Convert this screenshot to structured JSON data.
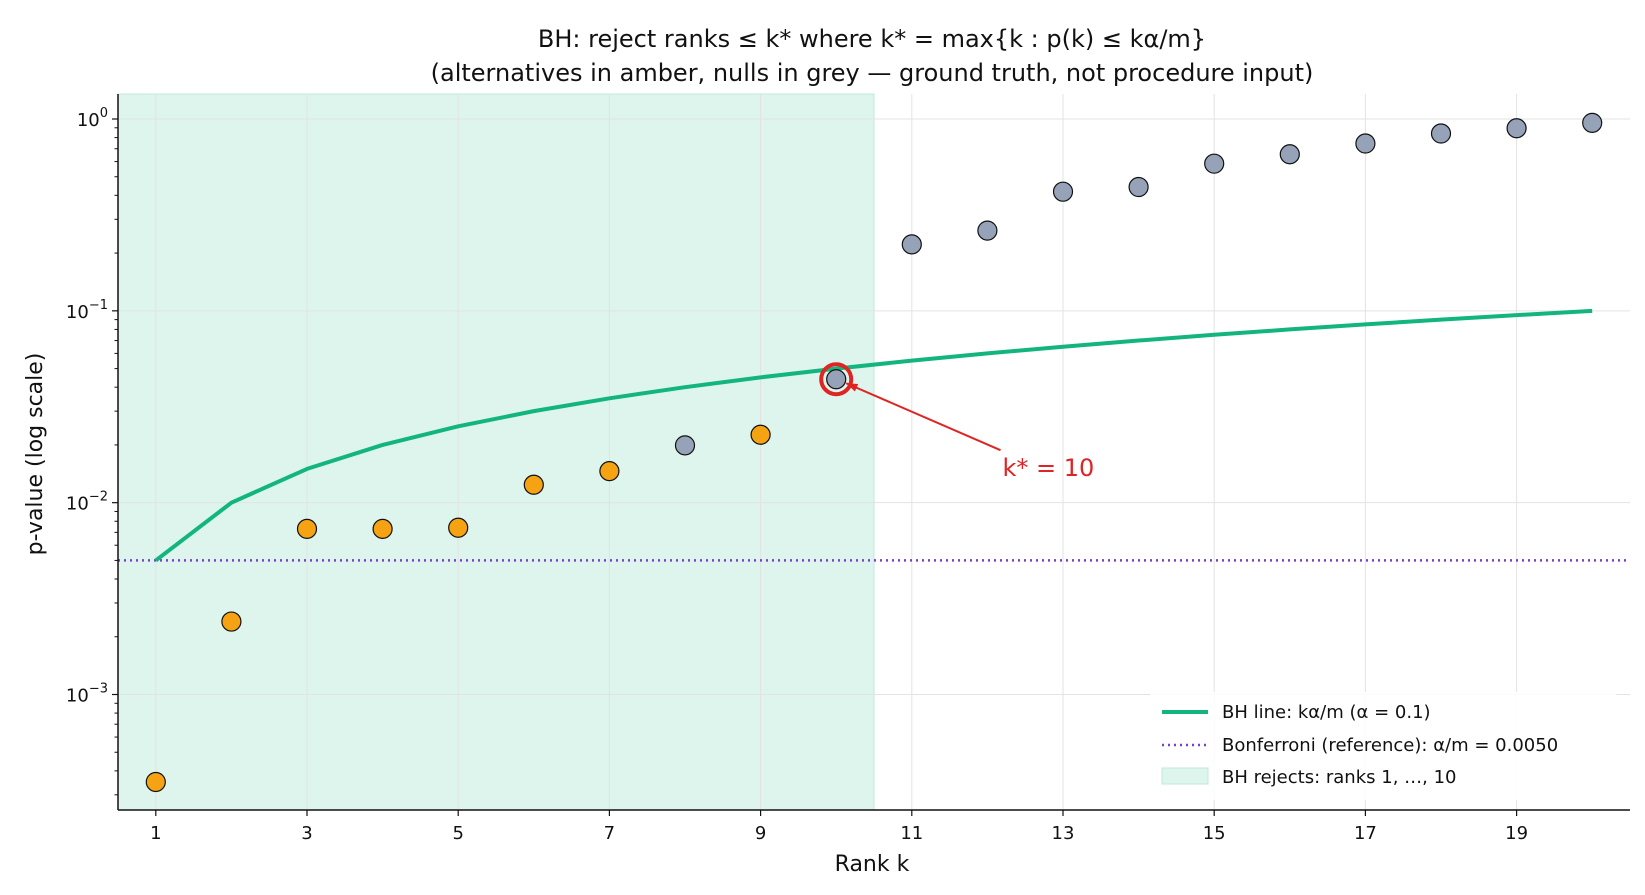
{
  "chart_data": {
    "type": "scatter",
    "title_line1": "BH: reject ranks ≤ k* where k* = max{k : p(k) ≤ kα/m}",
    "title_line2": "(alternatives in amber, nulls in grey — ground truth, not procedure input)",
    "xlabel": "Rank k",
    "ylabel": "p-value (log scale)",
    "log_y": true,
    "xlim": [
      0.5,
      20.5
    ],
    "ylim": [
      0.00025,
      1.35
    ],
    "grid": true,
    "x_ticks": [
      1,
      3,
      5,
      7,
      9,
      11,
      13,
      15,
      17,
      19
    ],
    "x_tick_labels": [
      "1",
      "3",
      "5",
      "7",
      "9",
      "11",
      "13",
      "15",
      "17",
      "19"
    ],
    "y_ticks": [
      {
        "value": 0.001,
        "base": "10",
        "exp": "−3"
      },
      {
        "value": 0.01,
        "base": "10",
        "exp": "−2"
      },
      {
        "value": 0.1,
        "base": "10",
        "exp": "−1"
      },
      {
        "value": 1,
        "base": "10",
        "exp": "0"
      }
    ],
    "alpha": 0.1,
    "m": 20,
    "bonferroni": 0.005,
    "k_star": 10,
    "reject_span": [
      0.5,
      10.5
    ],
    "points": [
      {
        "k": 1,
        "p": 0.00035,
        "alt": true
      },
      {
        "k": 2,
        "p": 0.0024,
        "alt": true
      },
      {
        "k": 3,
        "p": 0.0073,
        "alt": true
      },
      {
        "k": 4,
        "p": 0.0073,
        "alt": true
      },
      {
        "k": 5,
        "p": 0.0074,
        "alt": true
      },
      {
        "k": 6,
        "p": 0.0124,
        "alt": true
      },
      {
        "k": 7,
        "p": 0.0146,
        "alt": true
      },
      {
        "k": 8,
        "p": 0.0199,
        "alt": false
      },
      {
        "k": 9,
        "p": 0.0226,
        "alt": true
      },
      {
        "k": 10,
        "p": 0.044,
        "alt": false
      },
      {
        "k": 11,
        "p": 0.222,
        "alt": false
      },
      {
        "k": 12,
        "p": 0.262,
        "alt": false
      },
      {
        "k": 13,
        "p": 0.418,
        "alt": false
      },
      {
        "k": 14,
        "p": 0.442,
        "alt": false
      },
      {
        "k": 15,
        "p": 0.585,
        "alt": false
      },
      {
        "k": 16,
        "p": 0.655,
        "alt": false
      },
      {
        "k": 17,
        "p": 0.745,
        "alt": false
      },
      {
        "k": 18,
        "p": 0.84,
        "alt": false
      },
      {
        "k": 19,
        "p": 0.895,
        "alt": false
      },
      {
        "k": 20,
        "p": 0.955,
        "alt": false
      }
    ],
    "annotation": {
      "text": "k* = 10",
      "at_k": 12.2,
      "at_p": 0.0155
    },
    "legend": {
      "placement": "lower-right",
      "entries": [
        "BH line: kα/m  (α = 0.1)",
        "Bonferroni (reference): α/m = 0.0050",
        "BH rejects: ranks 1, …, 10"
      ]
    },
    "colors": {
      "bh_line": "#13b57e",
      "bonferroni": "#7b3fc9",
      "reject_fill": "#ddf5ec",
      "reject_edge": "#bfe9d8",
      "alt_point": "#f5a313",
      "null_point": "#96a2b8",
      "kstar": "#e02424",
      "grid": "#e3e3e3"
    }
  }
}
